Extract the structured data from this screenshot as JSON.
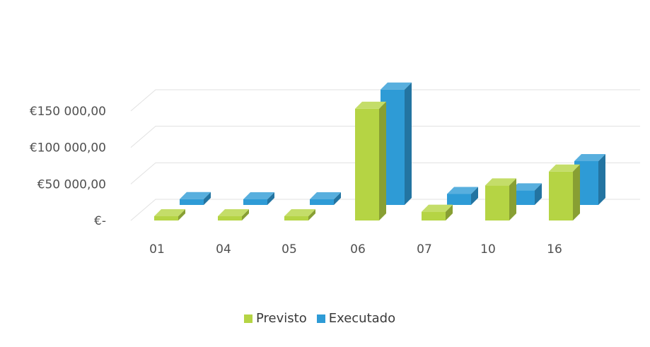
{
  "chart_data": {
    "type": "bar",
    "title": "",
    "xlabel": "",
    "ylabel": "",
    "categories": [
      "01",
      "04",
      "05",
      "06",
      "07",
      "10",
      "16"
    ],
    "series": [
      {
        "name": "Previsto",
        "color": "#b5d444",
        "values": [
          3000,
          1000,
          2000,
          153000,
          12000,
          48000,
          67000
        ]
      },
      {
        "name": "Executado",
        "color": "#2e9bd6",
        "values": [
          8000,
          3000,
          3000,
          158000,
          15000,
          20000,
          60000
        ]
      }
    ],
    "ylim": [
      0,
      150000
    ],
    "yticks": [
      0,
      50000,
      100000,
      150000
    ],
    "ytick_labels": [
      "€-",
      "€50 000,00",
      "€100 000,00",
      "€150 000,00"
    ],
    "style": "3d-clustered-column",
    "grid": true,
    "legend_position": "bottom"
  }
}
